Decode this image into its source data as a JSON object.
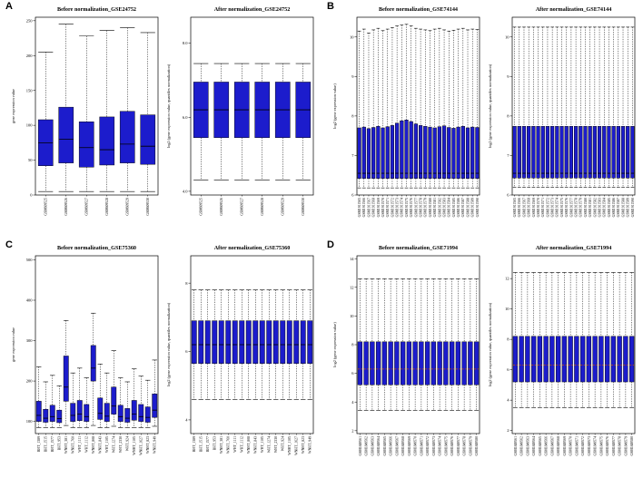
{
  "style": {
    "box_fill": "#1c1ccc",
    "box_stroke": "#000000",
    "whisker_color": "#000000",
    "title_color": "#00008b",
    "background": "#ffffff"
  },
  "panels": [
    {
      "label": "A"
    },
    {
      "label": "B"
    },
    {
      "label": "C"
    },
    {
      "label": "D"
    }
  ],
  "chart_data": [
    {
      "panel": "A",
      "position": "left",
      "type": "boxplot",
      "title": "Before normalization_GSE24752",
      "ylabel": "gene expression value",
      "ylim": [
        0,
        255
      ],
      "yticks": [
        "0",
        "50",
        "100",
        "150",
        "200",
        "250"
      ],
      "categories": [
        "GSM609525",
        "GSM609526",
        "GSM609527",
        "GSM609528",
        "GSM609529",
        "GSM609530"
      ],
      "boxes": [
        {
          "low": 5,
          "q1": 42,
          "median": 75,
          "q3": 108,
          "high": 205
        },
        {
          "low": 5,
          "q1": 46,
          "median": 80,
          "q3": 126,
          "high": 245
        },
        {
          "low": 5,
          "q1": 40,
          "median": 68,
          "q3": 105,
          "high": 228
        },
        {
          "low": 5,
          "q1": 43,
          "median": 65,
          "q3": 112,
          "high": 236
        },
        {
          "low": 5,
          "q1": 46,
          "median": 73,
          "q3": 120,
          "high": 240
        },
        {
          "low": 5,
          "q1": 44,
          "median": 70,
          "q3": 115,
          "high": 233
        }
      ]
    },
    {
      "panel": "A",
      "position": "right",
      "type": "boxplot",
      "title": "After normalization_GSE24752",
      "ylabel": "log2 (gene expression value, quantiles normalization)",
      "ylim": [
        3.9,
        8.7
      ],
      "yticks": [
        "4.0",
        "6.0",
        "8.0"
      ],
      "categories": [
        "GSM609525",
        "GSM609526",
        "GSM609527",
        "GSM609528",
        "GSM609529",
        "GSM609530"
      ],
      "box": {
        "low": 4.3,
        "q1": 5.45,
        "median": 6.2,
        "q3": 6.95,
        "high": 7.45
      }
    },
    {
      "panel": "B",
      "position": "left",
      "type": "boxplot",
      "title": "Before normalization_GSE74144",
      "ylabel": "log2 (gene expression value)",
      "ylim": [
        6.0,
        10.5
      ],
      "yticks": [
        "6",
        "7",
        "8",
        "9",
        "10"
      ],
      "categories": [
        "GSM1911565",
        "GSM1911566",
        "GSM1911567",
        "GSM1911568",
        "GSM1911569",
        "GSM1911570",
        "GSM1911571",
        "GSM1911572",
        "GSM1911573",
        "GSM1911574",
        "GSM1911575",
        "GSM1911576",
        "GSM1911577",
        "GSM1911578",
        "GSM1911579",
        "GSM1911580",
        "GSM1911581",
        "GSM1911582",
        "GSM1911583",
        "GSM1911584",
        "GSM1911585",
        "GSM1911586",
        "GSM1911587",
        "GSM1911588",
        "GSM1911589",
        "GSM1911590"
      ],
      "boxes": [
        {
          "low": 6.18,
          "q1": 6.42,
          "median": 6.55,
          "q3": 7.7,
          "high": 10.15
        },
        {
          "low": 6.18,
          "q1": 6.42,
          "median": 6.55,
          "q3": 7.72,
          "high": 10.2
        },
        {
          "low": 6.18,
          "q1": 6.42,
          "median": 6.55,
          "q3": 7.68,
          "high": 10.1
        },
        {
          "low": 6.18,
          "q1": 6.42,
          "median": 6.55,
          "q3": 7.71,
          "high": 10.18
        },
        {
          "low": 6.18,
          "q1": 6.42,
          "median": 6.55,
          "q3": 7.74,
          "high": 10.22
        },
        {
          "low": 6.18,
          "q1": 6.42,
          "median": 6.55,
          "q3": 7.7,
          "high": 10.16
        },
        {
          "low": 6.18,
          "q1": 6.42,
          "median": 6.55,
          "q3": 7.73,
          "high": 10.2
        },
        {
          "low": 6.18,
          "q1": 6.42,
          "median": 6.55,
          "q3": 7.76,
          "high": 10.24
        },
        {
          "low": 6.18,
          "q1": 6.42,
          "median": 6.55,
          "q3": 7.82,
          "high": 10.28
        },
        {
          "low": 6.18,
          "q1": 6.42,
          "median": 6.55,
          "q3": 7.88,
          "high": 10.3
        },
        {
          "low": 6.18,
          "q1": 6.42,
          "median": 6.55,
          "q3": 7.9,
          "high": 10.32
        },
        {
          "low": 6.18,
          "q1": 6.42,
          "median": 6.55,
          "q3": 7.86,
          "high": 10.28
        },
        {
          "low": 6.18,
          "q1": 6.42,
          "median": 6.55,
          "q3": 7.8,
          "high": 10.22
        },
        {
          "low": 6.18,
          "q1": 6.42,
          "median": 6.55,
          "q3": 7.76,
          "high": 10.2
        },
        {
          "low": 6.18,
          "q1": 6.42,
          "median": 6.55,
          "q3": 7.74,
          "high": 10.18
        },
        {
          "low": 6.18,
          "q1": 6.42,
          "median": 6.55,
          "q3": 7.72,
          "high": 10.16
        },
        {
          "low": 6.18,
          "q1": 6.42,
          "median": 6.55,
          "q3": 7.7,
          "high": 10.2
        },
        {
          "low": 6.18,
          "q1": 6.42,
          "median": 6.55,
          "q3": 7.73,
          "high": 10.22
        },
        {
          "low": 6.18,
          "q1": 6.42,
          "median": 6.55,
          "q3": 7.75,
          "high": 10.18
        },
        {
          "low": 6.18,
          "q1": 6.42,
          "median": 6.55,
          "q3": 7.71,
          "high": 10.15
        },
        {
          "low": 6.18,
          "q1": 6.42,
          "median": 6.55,
          "q3": 7.69,
          "high": 10.17
        },
        {
          "low": 6.18,
          "q1": 6.42,
          "median": 6.55,
          "q3": 7.72,
          "high": 10.2
        },
        {
          "low": 6.18,
          "q1": 6.42,
          "median": 6.55,
          "q3": 7.74,
          "high": 10.22
        },
        {
          "low": 6.18,
          "q1": 6.42,
          "median": 6.55,
          "q3": 7.7,
          "high": 10.18
        },
        {
          "low": 6.18,
          "q1": 6.42,
          "median": 6.55,
          "q3": 7.72,
          "high": 10.2
        },
        {
          "low": 6.18,
          "q1": 6.42,
          "median": 6.55,
          "q3": 7.71,
          "high": 10.19
        }
      ]
    },
    {
      "panel": "B",
      "position": "right",
      "type": "boxplot",
      "title": "After normalization_GSE74144",
      "ylabel": "log2 (gene expression value, quantiles normalization)",
      "ylim": [
        6.0,
        10.5
      ],
      "yticks": [
        "6",
        "7",
        "8",
        "9",
        "10"
      ],
      "categories": [
        "GSM1911565",
        "GSM1911566",
        "GSM1911567",
        "GSM1911568",
        "GSM1911569",
        "GSM1911570",
        "GSM1911571",
        "GSM1911572",
        "GSM1911573",
        "GSM1911574",
        "GSM1911575",
        "GSM1911576",
        "GSM1911577",
        "GSM1911578",
        "GSM1911579",
        "GSM1911580",
        "GSM1911581",
        "GSM1911582",
        "GSM1911583",
        "GSM1911584",
        "GSM1911585",
        "GSM1911586",
        "GSM1911587",
        "GSM1911588",
        "GSM1911589",
        "GSM1911590"
      ],
      "box": {
        "low": 6.2,
        "q1": 6.43,
        "median": 6.55,
        "q3": 7.74,
        "high": 10.25
      }
    },
    {
      "panel": "C",
      "position": "left",
      "type": "boxplot",
      "title": "Before normalization_GSE75360",
      "ylabel": "gene expression value",
      "ylim": [
        70,
        510
      ],
      "yticks": [
        "100",
        "200",
        "300",
        "400",
        "500"
      ],
      "categories": [
        "BHT_1389",
        "BHT_1515",
        "BHT_1577",
        "BHT_953",
        "WNHT_381",
        "WNHT_760",
        "WHT_1111",
        "WHT_1112",
        "WNHT_808",
        "WNHT_843",
        "WHT_1105",
        "WHT_1274",
        "WHT_2330",
        "WHT_924",
        "WNHT_1105",
        "WNHT_1627",
        "WNHT_823",
        "WNHT_949"
      ],
      "boxes": [
        {
          "low": 85,
          "q1": 100,
          "median": 115,
          "q3": 150,
          "high": 235
        },
        {
          "low": 85,
          "q1": 98,
          "median": 108,
          "q3": 130,
          "high": 198
        },
        {
          "low": 85,
          "q1": 100,
          "median": 112,
          "q3": 140,
          "high": 214
        },
        {
          "low": 85,
          "q1": 97,
          "median": 107,
          "q3": 128,
          "high": 188
        },
        {
          "low": 90,
          "q1": 150,
          "median": 185,
          "q3": 262,
          "high": 350
        },
        {
          "low": 85,
          "q1": 100,
          "median": 115,
          "q3": 145,
          "high": 220
        },
        {
          "low": 85,
          "q1": 102,
          "median": 118,
          "q3": 152,
          "high": 232
        },
        {
          "low": 85,
          "q1": 100,
          "median": 112,
          "q3": 142,
          "high": 208
        },
        {
          "low": 90,
          "q1": 200,
          "median": 232,
          "q3": 288,
          "high": 368
        },
        {
          "low": 85,
          "q1": 105,
          "median": 120,
          "q3": 158,
          "high": 242
        },
        {
          "low": 85,
          "q1": 100,
          "median": 113,
          "q3": 145,
          "high": 220
        },
        {
          "low": 88,
          "q1": 118,
          "median": 138,
          "q3": 185,
          "high": 275
        },
        {
          "low": 85,
          "q1": 100,
          "median": 112,
          "q3": 140,
          "high": 208
        },
        {
          "low": 85,
          "q1": 98,
          "median": 108,
          "q3": 132,
          "high": 198
        },
        {
          "low": 85,
          "q1": 103,
          "median": 118,
          "q3": 152,
          "high": 230
        },
        {
          "low": 85,
          "q1": 100,
          "median": 112,
          "q3": 142,
          "high": 212
        },
        {
          "low": 85,
          "q1": 98,
          "median": 110,
          "q3": 136,
          "high": 202
        },
        {
          "low": 88,
          "q1": 110,
          "median": 128,
          "q3": 168,
          "high": 252
        }
      ]
    },
    {
      "panel": "C",
      "position": "right",
      "type": "boxplot",
      "title": "After normalization_GSE75360",
      "ylabel": "log2 (gene expression value, quantiles normalization)",
      "ylim": [
        3.6,
        8.8
      ],
      "yticks": [
        "4",
        "6",
        "8"
      ],
      "categories": [
        "BHT_1389",
        "BHT_1515",
        "BHT_1577",
        "BHT_953",
        "WNHT_381",
        "WNHT_760",
        "WHT_1111",
        "WHT_1112",
        "WNHT_808",
        "WNHT_843",
        "WHT_1105",
        "WHT_1274",
        "WHT_2330",
        "WHT_924",
        "WNHT_1105",
        "WNHT_1627",
        "WNHT_823",
        "WNHT_949"
      ],
      "box": {
        "low": 4.6,
        "q1": 5.65,
        "median": 6.2,
        "q3": 6.9,
        "high": 7.8
      }
    },
    {
      "panel": "D",
      "position": "left",
      "type": "boxplot",
      "title": "Before normalization_GSE71994",
      "ylabel": "log2 (gene expression value)",
      "ylim": [
        1.8,
        14.2
      ],
      "yticks": [
        "2",
        "4",
        "6",
        "8",
        "10",
        "12",
        "14"
      ],
      "median_color": "#cc5500",
      "median_dash": "2,1.5",
      "categories": [
        "GSM1849561",
        "GSM1849562",
        "GSM1849563",
        "GSM1849564",
        "GSM1849565",
        "GSM1849566",
        "GSM1849567",
        "GSM1849568",
        "GSM1849569",
        "GSM1849570",
        "GSM1849571",
        "GSM1849572",
        "GSM1849573",
        "GSM1849574",
        "GSM1849575",
        "GSM1849576",
        "GSM1849577",
        "GSM1849578",
        "GSM1849579",
        "GSM1849580"
      ],
      "box": {
        "low": 3.4,
        "q1": 5.2,
        "median": 6.3,
        "q3": 8.2,
        "high": 12.6
      }
    },
    {
      "panel": "D",
      "position": "right",
      "type": "boxplot",
      "title": "After normalization_GSE71994",
      "ylabel": "log2 (gene expression value, quantiles normalization)",
      "ylim": [
        1.8,
        13.5
      ],
      "yticks": [
        "2",
        "4",
        "6",
        "8",
        "10",
        "12"
      ],
      "median_color": "#cc5500",
      "median_dash": "2,1.5",
      "categories": [
        "GSM1849561",
        "GSM1849562",
        "GSM1849563",
        "GSM1849564",
        "GSM1849565",
        "GSM1849566",
        "GSM1849567",
        "GSM1849568",
        "GSM1849569",
        "GSM1849570",
        "GSM1849571",
        "GSM1849572",
        "GSM1849573",
        "GSM1849574",
        "GSM1849575",
        "GSM1849576",
        "GSM1849577",
        "GSM1849578",
        "GSM1849579",
        "GSM1849580"
      ],
      "box": {
        "low": 3.5,
        "q1": 5.2,
        "median": 6.3,
        "q3": 8.2,
        "high": 12.4
      }
    }
  ]
}
